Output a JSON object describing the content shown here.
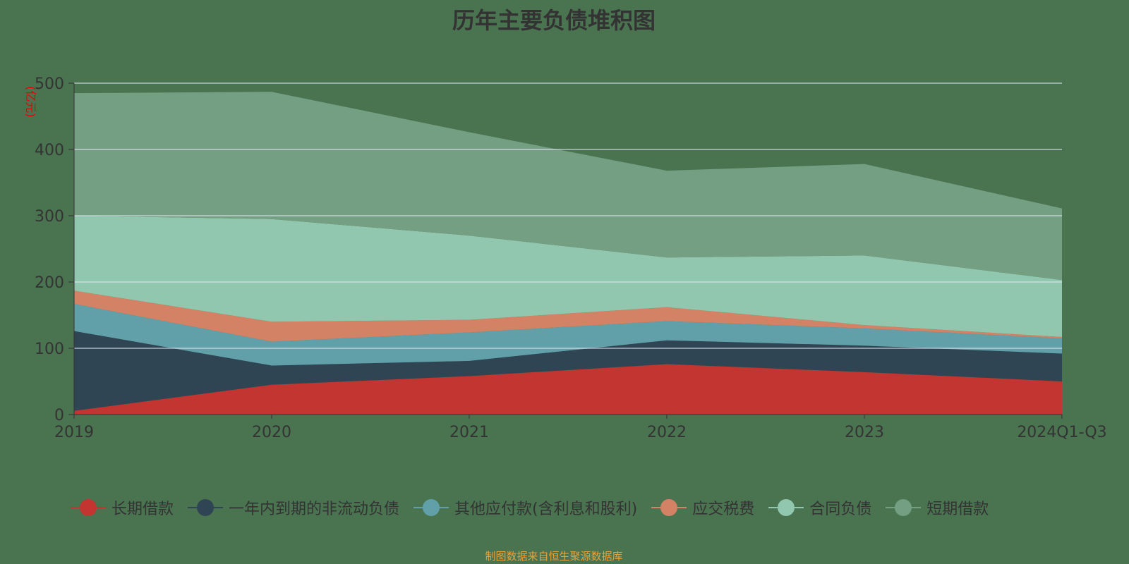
{
  "title": "历年主要负债堆积图",
  "source": "制图数据来自恒生聚源数据库",
  "chart_data": {
    "type": "area",
    "stacked": true,
    "title": "历年主要负债堆积图",
    "ylabel": "(亿元)",
    "ylim": [
      0,
      500
    ],
    "yticks": [
      0,
      100,
      200,
      300,
      400,
      500
    ],
    "grid": true,
    "legend_position": "bottom",
    "categories": [
      "2019",
      "2020",
      "2021",
      "2022",
      "2023",
      "2024Q1-Q3"
    ],
    "series": [
      {
        "name": "长期借款",
        "color": "#c23531",
        "values": [
          5.6,
          45,
          58,
          76,
          64,
          50
        ]
      },
      {
        "name": "一年内到期的非流动负债",
        "color": "#2f4554",
        "values": [
          120.4,
          29,
          23,
          36,
          40,
          42
        ]
      },
      {
        "name": "其他应付款(含利息和股利)",
        "color": "#61a0a8",
        "values": [
          41,
          36,
          43,
          29,
          26,
          23
        ]
      },
      {
        "name": "应交税费",
        "color": "#d48265",
        "values": [
          20,
          30,
          19,
          21,
          5,
          2
        ]
      },
      {
        "name": "合同负债",
        "color": "#91c7ae",
        "values": [
          113,
          155,
          127,
          75,
          105,
          86
        ]
      },
      {
        "name": "短期借款",
        "color": "#749f83",
        "values": [
          185,
          192,
          156,
          131,
          138,
          108
        ]
      }
    ]
  }
}
